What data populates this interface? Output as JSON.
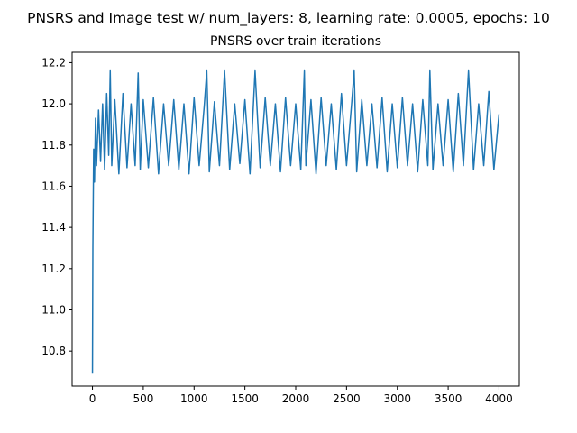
{
  "figure": {
    "suptitle": "PNSRS and Image test w/ num_layers: 8, learning rate: 0.0005, epochs: 10"
  },
  "chart_data": {
    "type": "line",
    "title": "PNSRS over train iterations",
    "xlabel": "",
    "ylabel": "",
    "xlim": [
      -200,
      4200
    ],
    "ylim": [
      10.63,
      12.25
    ],
    "xticks": [
      0,
      500,
      1000,
      1500,
      2000,
      2500,
      3000,
      3500,
      4000
    ],
    "xtick_labels": [
      "0",
      "500",
      "1000",
      "1500",
      "2000",
      "2500",
      "3000",
      "3500",
      "4000"
    ],
    "yticks": [
      10.8,
      11.0,
      11.2,
      11.4,
      11.6,
      11.8,
      12.0,
      12.2
    ],
    "ytick_labels": [
      "10.8",
      "11.0",
      "11.2",
      "11.4",
      "11.6",
      "11.8",
      "12.0",
      "12.2"
    ],
    "grid": false,
    "legend": "none",
    "color": "#1f77b4",
    "series": [
      {
        "x": [
          0,
          4,
          8,
          12,
          20,
          30,
          40,
          60,
          80,
          100,
          120,
          140,
          160,
          175,
          190,
          220,
          260,
          300,
          340,
          380,
          420,
          450,
          470,
          500,
          550,
          600,
          650,
          700,
          750,
          800,
          850,
          900,
          950,
          1000,
          1050,
          1100,
          1125,
          1150,
          1200,
          1250,
          1300,
          1350,
          1400,
          1450,
          1500,
          1550,
          1600,
          1650,
          1700,
          1750,
          1800,
          1850,
          1900,
          1950,
          2000,
          2050,
          2085,
          2100,
          2150,
          2200,
          2250,
          2300,
          2350,
          2400,
          2450,
          2500,
          2550,
          2575,
          2600,
          2650,
          2700,
          2750,
          2800,
          2850,
          2900,
          2950,
          3000,
          3050,
          3100,
          3150,
          3200,
          3250,
          3300,
          3320,
          3350,
          3400,
          3450,
          3500,
          3550,
          3600,
          3650,
          3700,
          3750,
          3800,
          3850,
          3900,
          3950,
          4000
        ],
        "y": [
          10.69,
          11.3,
          11.55,
          11.78,
          11.62,
          11.93,
          11.7,
          11.97,
          11.72,
          12.0,
          11.68,
          12.05,
          11.75,
          12.16,
          11.7,
          12.02,
          11.66,
          12.05,
          11.69,
          12.0,
          11.7,
          12.15,
          11.68,
          12.02,
          11.69,
          12.03,
          11.66,
          12.0,
          11.7,
          12.02,
          11.68,
          12.0,
          11.66,
          12.03,
          11.7,
          11.99,
          12.16,
          11.67,
          12.01,
          11.7,
          12.16,
          11.68,
          12.0,
          11.71,
          12.02,
          11.66,
          12.16,
          11.69,
          12.03,
          11.7,
          12.0,
          11.67,
          12.03,
          11.7,
          12.0,
          11.68,
          12.16,
          11.7,
          12.02,
          11.66,
          12.03,
          11.7,
          12.0,
          11.68,
          12.05,
          11.7,
          12.0,
          12.16,
          11.67,
          12.02,
          11.7,
          12.0,
          11.69,
          12.03,
          11.67,
          12.0,
          11.69,
          12.03,
          11.7,
          12.0,
          11.67,
          12.02,
          11.7,
          12.16,
          11.68,
          12.0,
          11.7,
          12.02,
          11.67,
          12.05,
          11.7,
          12.16,
          11.68,
          12.0,
          11.7,
          12.06,
          11.68,
          11.95
        ]
      }
    ]
  }
}
